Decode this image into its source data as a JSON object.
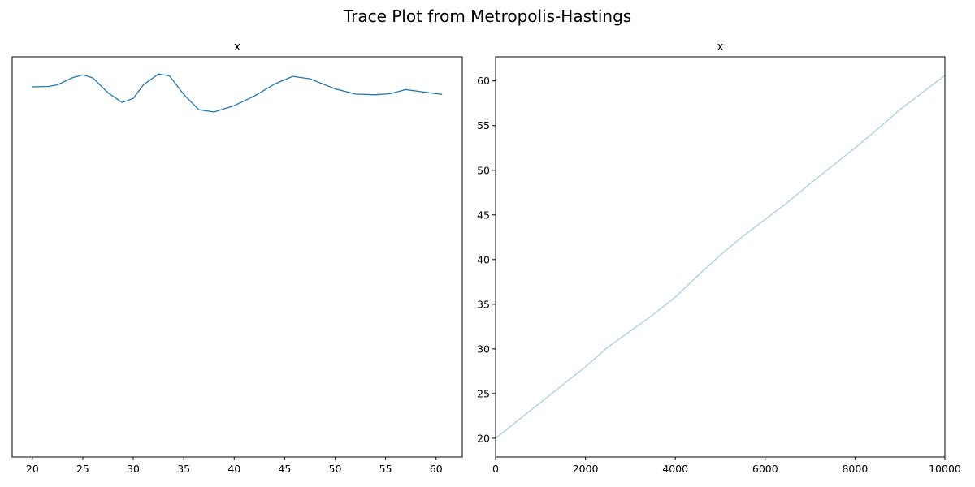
{
  "title": "Trace Plot from Metropolis-Hastings",
  "chart_data": [
    {
      "type": "line",
      "title": "x",
      "xlabel": "",
      "ylabel": "",
      "xlim": [
        18.0,
        62.6
      ],
      "ylim": [
        0,
        1
      ],
      "x_ticks": [
        20,
        25,
        30,
        35,
        40,
        45,
        50,
        55,
        60
      ],
      "y_ticks": [],
      "grid": false,
      "series": [
        {
          "color": "#1f77b4",
          "x": [
            20.0,
            21.6,
            22.5,
            24.0,
            25.0,
            26.0,
            27.5,
            28.9,
            30.0,
            31.0,
            32.5,
            33.6,
            35.0,
            36.5,
            38.0,
            40.0,
            42.0,
            44.0,
            45.8,
            47.5,
            50.0,
            52.0,
            54.0,
            55.5,
            57.0,
            58.5,
            60.6
          ],
          "y": [
            0.925,
            0.926,
            0.93,
            0.948,
            0.955,
            0.947,
            0.91,
            0.886,
            0.896,
            0.93,
            0.957,
            0.952,
            0.906,
            0.868,
            0.862,
            0.878,
            0.902,
            0.932,
            0.951,
            0.945,
            0.92,
            0.907,
            0.905,
            0.908,
            0.918,
            0.913,
            0.906
          ]
        }
      ]
    },
    {
      "type": "line",
      "title": "x",
      "xlabel": "",
      "ylabel": "",
      "xlim": [
        0,
        10000
      ],
      "ylim": [
        17.9,
        62.7
      ],
      "x_ticks": [
        0,
        2000,
        4000,
        6000,
        8000,
        10000
      ],
      "y_ticks": [
        20,
        25,
        30,
        35,
        40,
        45,
        50,
        55,
        60
      ],
      "grid": false,
      "series": [
        {
          "color": "#a6cee3",
          "x": [
            0,
            500,
            1000,
            1500,
            2000,
            2500,
            3000,
            3500,
            4000,
            4500,
            5000,
            5500,
            6000,
            6500,
            7000,
            7500,
            8000,
            8500,
            9000,
            9500,
            10000
          ],
          "y": [
            20.0,
            22.0,
            24.0,
            26.0,
            28.0,
            30.2,
            32.0,
            33.8,
            35.8,
            38.2,
            40.5,
            42.6,
            44.5,
            46.4,
            48.5,
            50.5,
            52.5,
            54.6,
            56.8,
            58.7,
            60.6
          ]
        }
      ]
    }
  ]
}
